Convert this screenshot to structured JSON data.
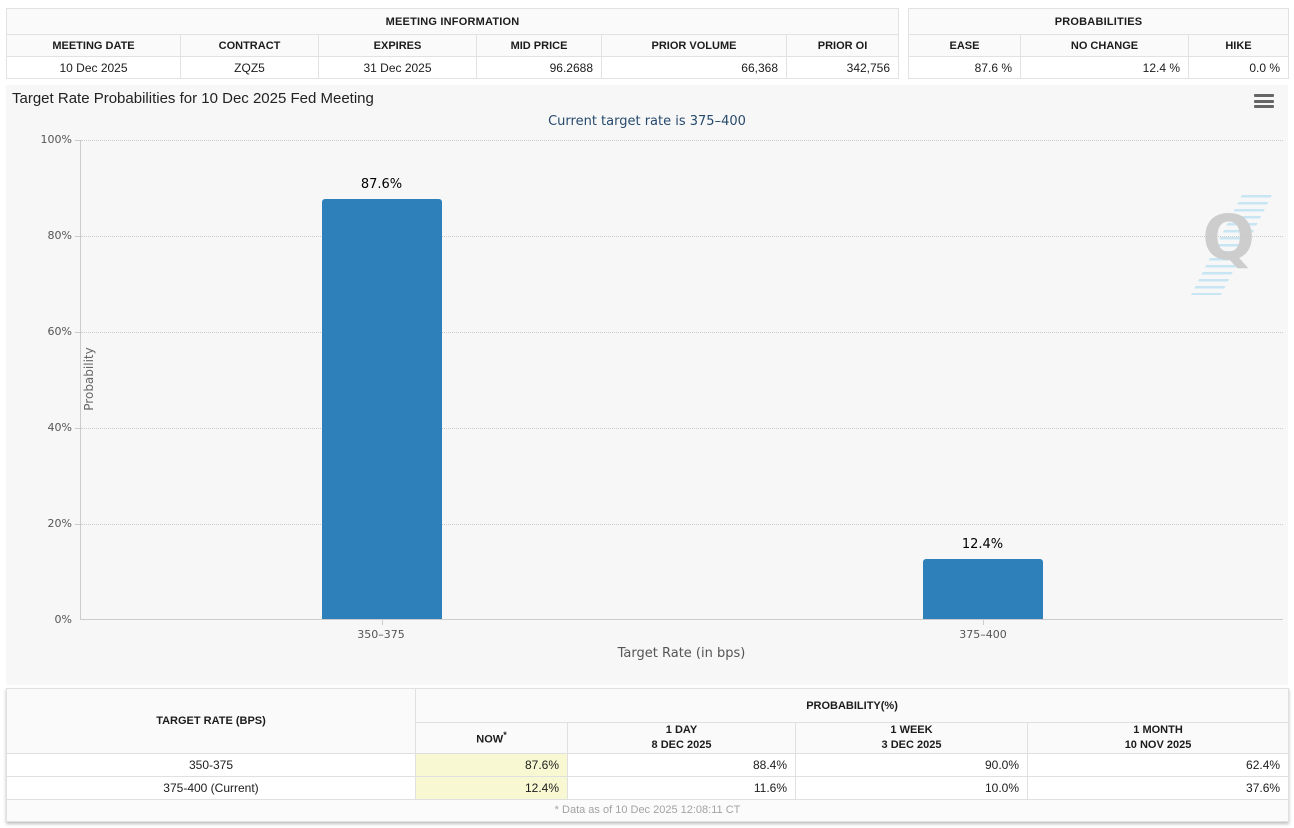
{
  "meeting_info": {
    "title": "MEETING INFORMATION",
    "columns": [
      "MEETING DATE",
      "CONTRACT",
      "EXPIRES",
      "MID PRICE",
      "PRIOR VOLUME",
      "PRIOR OI"
    ],
    "row": {
      "meeting_date": "10 Dec 2025",
      "contract": "ZQZ5",
      "expires": "31 Dec 2025",
      "mid_price": "96.2688",
      "prior_volume": "66,368",
      "prior_oi": "342,756"
    }
  },
  "probabilities_summary": {
    "title": "PROBABILITIES",
    "columns": [
      "EASE",
      "NO CHANGE",
      "HIKE"
    ],
    "row": {
      "ease": "87.6 %",
      "no_change": "12.4 %",
      "hike": "0.0 %"
    }
  },
  "chart_data": {
    "type": "bar",
    "title": "Target Rate Probabilities for 10 Dec 2025 Fed Meeting",
    "subtitle": "Current target rate is 375–400",
    "categories": [
      "350–375",
      "375–400"
    ],
    "values": [
      87.6,
      12.4
    ],
    "value_labels": [
      "87.6%",
      "12.4%"
    ],
    "xlabel": "Target Rate (in bps)",
    "ylabel": "Probability",
    "ylim": [
      0,
      100
    ],
    "ytick_labels": [
      "100%",
      "80%",
      "60%",
      "40%",
      "20%",
      "0%"
    ],
    "grid": "dotted horizontal gridlines at 20% steps",
    "legend_position": "none",
    "bar_color": "#2d80ba",
    "watermark_letter": "Q"
  },
  "probability_table": {
    "col1_header": "TARGET RATE (BPS)",
    "group_header": "PROBABILITY(%)",
    "subcolumns": {
      "now": {
        "line1": "NOW",
        "asterisk": "*"
      },
      "day": {
        "line1": "1 DAY",
        "line2": "8 DEC 2025"
      },
      "week": {
        "line1": "1 WEEK",
        "line2": "3 DEC 2025"
      },
      "month": {
        "line1": "1 MONTH",
        "line2": "10 NOV 2025"
      }
    },
    "rows": [
      {
        "target_rate": "350-375",
        "now": "87.6%",
        "day": "88.4%",
        "week": "90.0%",
        "month": "62.4%"
      },
      {
        "target_rate": "375-400 (Current)",
        "now": "12.4%",
        "day": "11.6%",
        "week": "10.0%",
        "month": "37.6%"
      }
    ],
    "footnote": "* Data as of 10 Dec 2025 12:08:11 CT"
  },
  "colors": {
    "bar": "#2d80ba",
    "now_highlight": "#f8f8d2",
    "subtitle_text": "#274a6d",
    "chart_background": "#f7f7f7"
  }
}
